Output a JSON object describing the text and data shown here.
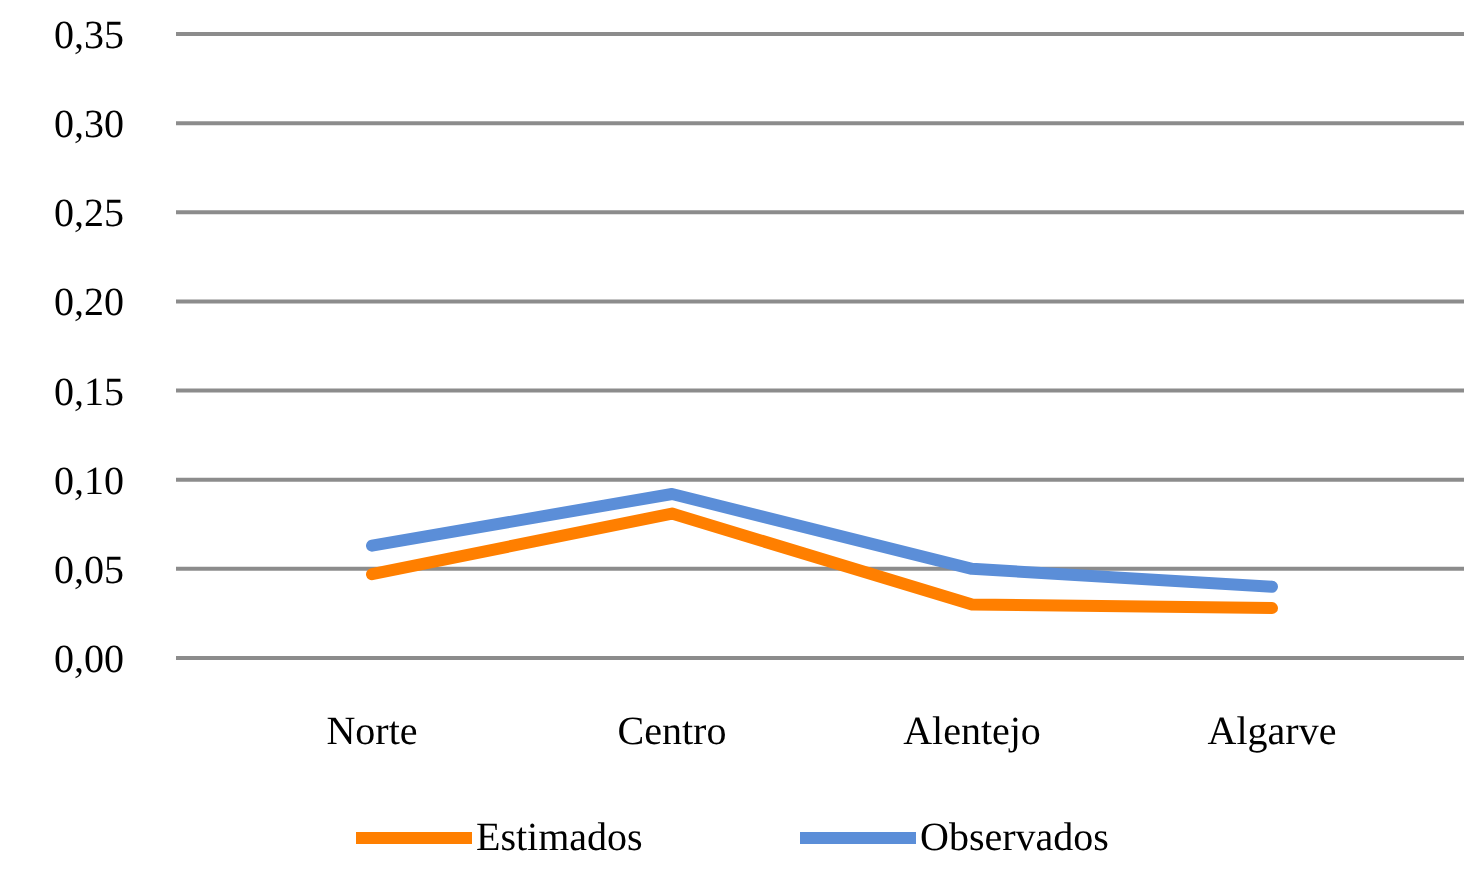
{
  "chart_data": {
    "type": "line",
    "categories": [
      "Norte",
      "Centro",
      "Alentejo",
      "Algarve"
    ],
    "series": [
      {
        "name": "Estimados",
        "color": "#ff7f00",
        "values": [
          0.047,
          0.081,
          0.03,
          0.028
        ]
      },
      {
        "name": "Observados",
        "color": "#5b8ed8",
        "values": [
          0.063,
          0.092,
          0.05,
          0.04
        ]
      }
    ],
    "ylim": [
      0,
      0.35
    ],
    "yticks": [
      {
        "value": 0,
        "label": "0,00"
      },
      {
        "value": 0.05,
        "label": "0,05"
      },
      {
        "value": 0.1,
        "label": "0,10"
      },
      {
        "value": 0.15,
        "label": "0,15"
      },
      {
        "value": 0.2,
        "label": "0,20"
      },
      {
        "value": 0.25,
        "label": "0,25"
      },
      {
        "value": 0.3,
        "label": "0,30"
      },
      {
        "value": 0.35,
        "label": "0,35"
      }
    ],
    "grid": "y",
    "legend": "bottom",
    "marker": "none",
    "line_style": "solid"
  }
}
